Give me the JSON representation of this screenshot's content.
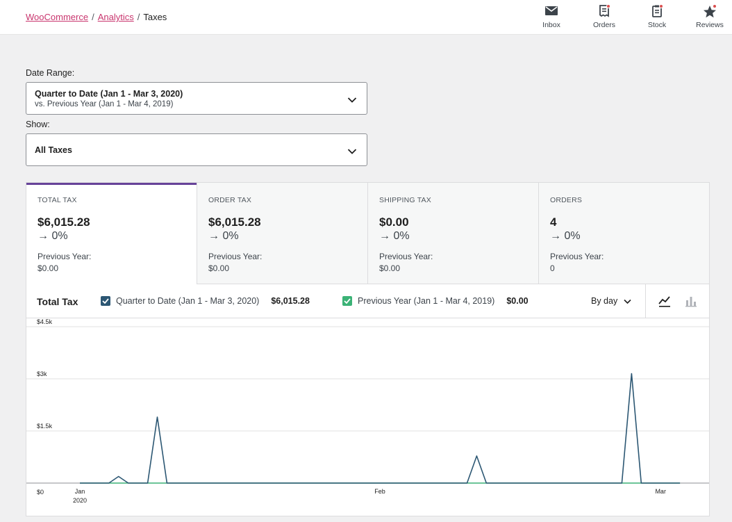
{
  "breadcrumb": {
    "items": [
      "WooCommerce",
      "Analytics"
    ],
    "current": "Taxes",
    "separator": "/"
  },
  "activity": [
    {
      "label": "Inbox",
      "icon": "inbox-icon"
    },
    {
      "label": "Orders",
      "icon": "orders-icon"
    },
    {
      "label": "Stock",
      "icon": "stock-icon"
    },
    {
      "label": "Reviews",
      "icon": "star-icon"
    }
  ],
  "filters": {
    "date_label": "Date Range:",
    "date_primary": "Quarter to Date (Jan 1 - Mar 3, 2020)",
    "date_secondary": "vs. Previous Year (Jan 1 - Mar 4, 2019)",
    "show_label": "Show:",
    "show_value": "All Taxes"
  },
  "summary": [
    {
      "label": "TOTAL TAX",
      "value": "$6,015.28",
      "delta": "→ 0%",
      "prev_label": "Previous Year:",
      "prev_value": "$0.00"
    },
    {
      "label": "ORDER TAX",
      "value": "$6,015.28",
      "delta": "→ 0%",
      "prev_label": "Previous Year:",
      "prev_value": "$0.00"
    },
    {
      "label": "SHIPPING TAX",
      "value": "$0.00",
      "delta": "→ 0%",
      "prev_label": "Previous Year:",
      "prev_value": "$0.00"
    },
    {
      "label": "ORDERS",
      "value": "4",
      "delta": "→ 0%",
      "prev_label": "Previous Year:",
      "prev_value": "0"
    }
  ],
  "chart_header": {
    "title": "Total Tax",
    "legend": [
      {
        "label": "Quarter to Date (Jan 1 - Mar 3, 2020)",
        "total": "$6,015.28",
        "color": "#2c5773"
      },
      {
        "label": "Previous Year (Jan 1 - Mar 4, 2019)",
        "total": "$0.00",
        "color": "#3bb276"
      }
    ],
    "interval": "By day"
  },
  "chart_data": {
    "type": "line",
    "title": "Total Tax",
    "ylim": [
      0,
      4500
    ],
    "yticks": [
      0,
      1500,
      3000,
      4500
    ],
    "ytick_labels": [
      "$0",
      "$1.5k",
      "$3k",
      "$4.5k"
    ],
    "xlim": [
      0,
      63
    ],
    "xticks": [
      0,
      31,
      60
    ],
    "xtick_labels": [
      "Jan",
      "Feb",
      "Mar"
    ],
    "xtick_sublabels": [
      "2020",
      "",
      ""
    ],
    "grid": true,
    "series": [
      {
        "name": "Quarter to Date (Jan 1 - Mar 3, 2020)",
        "color": "#2c5773",
        "x": [
          0,
          3,
          4,
          5,
          7,
          8,
          9,
          40,
          41,
          42,
          56,
          57,
          58,
          62
        ],
        "y": [
          0,
          0,
          190,
          0,
          0,
          1900,
          0,
          0,
          780,
          0,
          0,
          3150,
          0,
          0
        ]
      },
      {
        "name": "Previous Year (Jan 1 - Mar 4, 2019)",
        "color": "#3bb276",
        "x": [
          0,
          62
        ],
        "y": [
          0,
          0
        ]
      }
    ]
  }
}
